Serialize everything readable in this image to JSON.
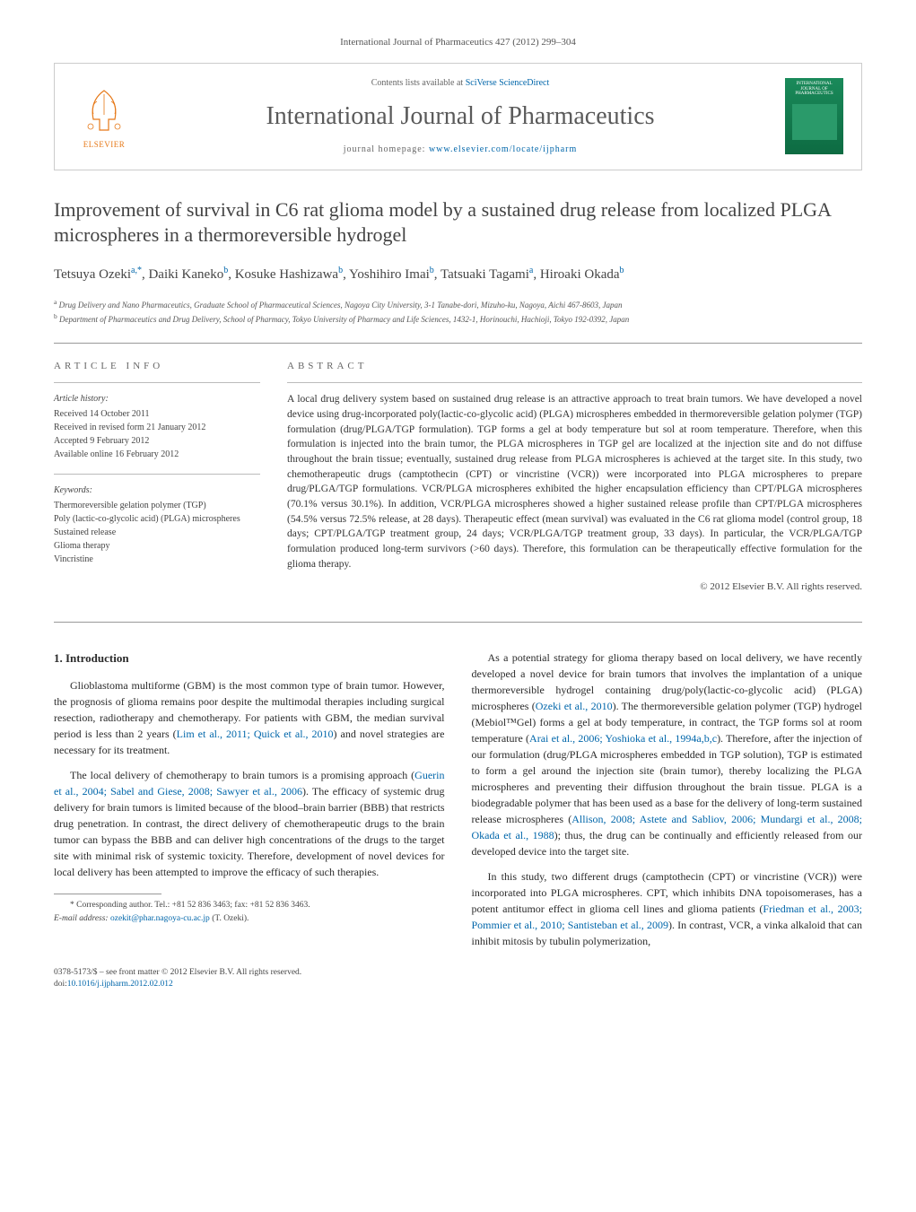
{
  "journal_ref": "International Journal of Pharmaceutics 427 (2012) 299–304",
  "header": {
    "contents_prefix": "Contents lists available at ",
    "contents_link": "SciVerse ScienceDirect",
    "journal_title": "International Journal of Pharmaceutics",
    "homepage_prefix": "journal homepage: ",
    "homepage_link": "www.elsevier.com/locate/ijpharm",
    "elsevier_label": "ELSEVIER",
    "cover_title": "INTERNATIONAL JOURNAL OF PHARMACEUTICS"
  },
  "article": {
    "title": "Improvement of survival in C6 rat glioma model by a sustained drug release from localized PLGA microspheres in a thermoreversible hydrogel",
    "authors_html": "Tetsuya Ozeki<sup>a,*</sup>, Daiki Kaneko<sup>b</sup>, Kosuke Hashizawa<sup>b</sup>, Yoshihiro Imai<sup>b</sup>, Tatsuaki Tagami<sup>a</sup>, Hiroaki Okada<sup>b</sup>",
    "affiliations": [
      "a Drug Delivery and Nano Pharmaceutics, Graduate School of Pharmaceutical Sciences, Nagoya City University, 3-1 Tanabe-dori, Mizuho-ku, Nagoya, Aichi 467-8603, Japan",
      "b Department of Pharmaceutics and Drug Delivery, School of Pharmacy, Tokyo University of Pharmacy and Life Sciences, 1432-1, Horinouchi, Hachioji, Tokyo 192-0392, Japan"
    ]
  },
  "info": {
    "heading": "ARTICLE INFO",
    "history_label": "Article history:",
    "history": [
      "Received 14 October 2011",
      "Received in revised form 21 January 2012",
      "Accepted 9 February 2012",
      "Available online 16 February 2012"
    ],
    "keywords_label": "Keywords:",
    "keywords": [
      "Thermoreversible gelation polymer (TGP)",
      "Poly (lactic-co-glycolic acid) (PLGA) microspheres",
      "Sustained release",
      "Glioma therapy",
      "Vincristine"
    ]
  },
  "abstract": {
    "heading": "ABSTRACT",
    "text": "A local drug delivery system based on sustained drug release is an attractive approach to treat brain tumors. We have developed a novel device using drug-incorporated poly(lactic-co-glycolic acid) (PLGA) microspheres embedded in thermoreversible gelation polymer (TGP) formulation (drug/PLGA/TGP formulation). TGP forms a gel at body temperature but sol at room temperature. Therefore, when this formulation is injected into the brain tumor, the PLGA microspheres in TGP gel are localized at the injection site and do not diffuse throughout the brain tissue; eventually, sustained drug release from PLGA microspheres is achieved at the target site. In this study, two chemotherapeutic drugs (camptothecin (CPT) or vincristine (VCR)) were incorporated into PLGA microspheres to prepare drug/PLGA/TGP formulations. VCR/PLGA microspheres exhibited the higher encapsulation efficiency than CPT/PLGA microspheres (70.1% versus 30.1%). In addition, VCR/PLGA microspheres showed a higher sustained release profile than CPT/PLGA microspheres (54.5% versus 72.5% release, at 28 days). Therapeutic effect (mean survival) was evaluated in the C6 rat glioma model (control group, 18 days; CPT/PLGA/TGP treatment group, 24 days; VCR/PLGA/TGP treatment group, 33 days). In particular, the VCR/PLGA/TGP formulation produced long-term survivors (>60 days). Therefore, this formulation can be therapeutically effective formulation for the glioma therapy.",
    "copyright": "© 2012 Elsevier B.V. All rights reserved."
  },
  "body": {
    "section1_heading": "1. Introduction",
    "p1_pre": "Glioblastoma multiforme (GBM) is the most common type of brain tumor. However, the prognosis of glioma remains poor despite the multimodal therapies including surgical resection, radiotherapy and chemotherapy. For patients with GBM, the median survival period is less than 2 years (",
    "p1_link": "Lim et al., 2011; Quick et al., 2010",
    "p1_post": ") and novel strategies are necessary for its treatment.",
    "p2_pre": "The local delivery of chemotherapy to brain tumors is a promising approach (",
    "p2_link": "Guerin et al., 2004; Sabel and Giese, 2008; Sawyer et al., 2006",
    "p2_post": "). The efficacy of systemic drug delivery for brain tumors is limited because of the blood–brain barrier (BBB) that restricts drug penetration. In contrast, the direct delivery of chemotherapeutic drugs to the brain tumor can bypass the BBB and can deliver high concentrations of the drugs to the target site with minimal risk of systemic toxicity. Therefore, development of novel devices for local delivery has been attempted to improve the efficacy of such therapies.",
    "p3_pre": "As a potential strategy for glioma therapy based on local delivery, we have recently developed a novel device for brain tumors that involves the implantation of a unique thermoreversible hydrogel containing drug/poly(lactic-co-glycolic acid) (PLGA) microspheres (",
    "p3_link1": "Ozeki et al., 2010",
    "p3_mid1": "). The thermoreversible gelation polymer (TGP) hydrogel (Mebiol™Gel) forms a gel at body temperature, in contract, the TGP forms sol at room temperature (",
    "p3_link2": "Arai et al., 2006; Yoshioka et al., 1994a,b,c",
    "p3_mid2": "). Therefore, after the injection of our formulation (drug/PLGA microspheres embedded in TGP solution), TGP is estimated to form a gel around the injection site (brain tumor), thereby localizing the PLGA microspheres and preventing their diffusion throughout the brain tissue. PLGA is a biodegradable polymer that has been used as a base for the delivery of long-term sustained release microspheres (",
    "p3_link3": "Allison, 2008; Astete and Sabliov, 2006; Mundargi et al., 2008; Okada et al., 1988",
    "p3_post": "); thus, the drug can be continually and efficiently released from our developed device into the target site.",
    "p4_pre": "In this study, two different drugs (camptothecin (CPT) or vincristine (VCR)) were incorporated into PLGA microspheres. CPT, which inhibits DNA topoisomerases, has a potent antitumor effect in glioma cell lines and glioma patients (",
    "p4_link": "Friedman et al., 2003; Pommier et al., 2010; Santisteban et al., 2009",
    "p4_post": "). In contrast, VCR, a vinka alkaloid that can inhibit mitosis by tubulin polymerization,"
  },
  "footnotes": {
    "corr_label": "* Corresponding author. Tel.: +81 52 836 3463; fax: +81 52 836 3463.",
    "email_label": "E-mail address: ",
    "email": "ozekit@phar.nagoya-cu.ac.jp",
    "email_suffix": " (T. Ozeki)."
  },
  "footer": {
    "line1": "0378-5173/$ – see front matter © 2012 Elsevier B.V. All rights reserved.",
    "doi_prefix": "doi:",
    "doi": "10.1016/j.ijpharm.2012.02.012"
  },
  "colors": {
    "link": "#0066aa",
    "elsevier_orange": "#e67817",
    "cover_green": "#1a8a5a",
    "text": "#333333",
    "border": "#cccccc"
  }
}
